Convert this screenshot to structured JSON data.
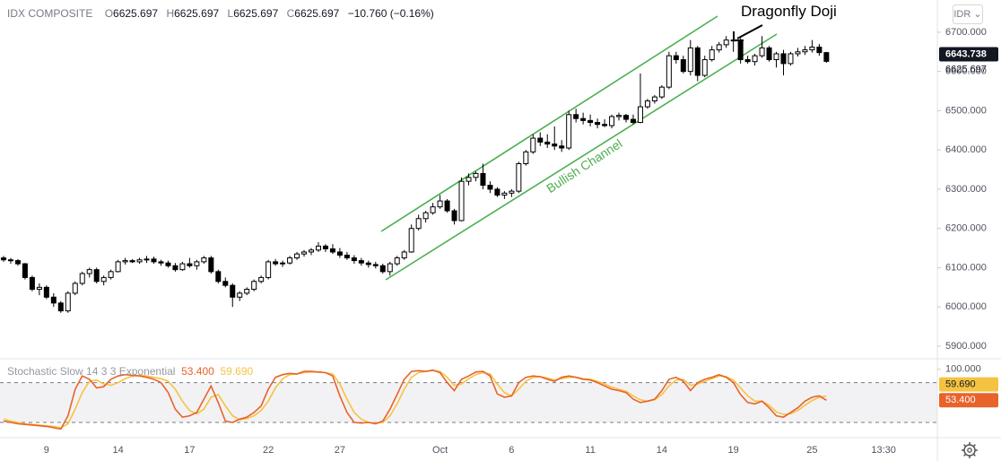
{
  "chart_data": {
    "type": "candlestick",
    "title": "IDX COMPOSITE",
    "ohlc": [
      {
        "label": "O",
        "value": 6625.697
      },
      {
        "label": "H",
        "value": 6625.697
      },
      {
        "label": "L",
        "value": 6625.697
      },
      {
        "label": "C",
        "value": 6625.697
      }
    ],
    "change": "−10.760 (−0.16%)",
    "currency": "IDR",
    "up_color": "#ffffff",
    "down_color": "#000000",
    "candles": [
      [
        6125,
        6130,
        6115,
        6120
      ],
      [
        6120,
        6125,
        6110,
        6118
      ],
      [
        6118,
        6122,
        6105,
        6110
      ],
      [
        6110,
        6112,
        6070,
        6075
      ],
      [
        6075,
        6080,
        6040,
        6045
      ],
      [
        6045,
        6060,
        6030,
        6050
      ],
      [
        6050,
        6055,
        6020,
        6025
      ],
      [
        6025,
        6035,
        6000,
        6010
      ],
      [
        6010,
        6015,
        5985,
        5990
      ],
      [
        5990,
        6040,
        5985,
        6035
      ],
      [
        6035,
        6065,
        6030,
        6060
      ],
      [
        6060,
        6090,
        6055,
        6085
      ],
      [
        6085,
        6100,
        6075,
        6095
      ],
      [
        6095,
        6100,
        6060,
        6065
      ],
      [
        6065,
        6080,
        6055,
        6075
      ],
      [
        6075,
        6095,
        6070,
        6090
      ],
      [
        6090,
        6120,
        6088,
        6115
      ],
      [
        6115,
        6125,
        6108,
        6118
      ],
      [
        6118,
        6122,
        6112,
        6115
      ],
      [
        6115,
        6125,
        6110,
        6120
      ],
      [
        6120,
        6130,
        6112,
        6122
      ],
      [
        6122,
        6128,
        6110,
        6115
      ],
      [
        6115,
        6120,
        6105,
        6112
      ],
      [
        6112,
        6118,
        6100,
        6105
      ],
      [
        6105,
        6112,
        6090,
        6095
      ],
      [
        6095,
        6115,
        6092,
        6110
      ],
      [
        6110,
        6125,
        6100,
        6105
      ],
      [
        6105,
        6120,
        6095,
        6115
      ],
      [
        6115,
        6130,
        6110,
        6125
      ],
      [
        6125,
        6130,
        6085,
        6090
      ],
      [
        6090,
        6095,
        6060,
        6065
      ],
      [
        6065,
        6075,
        6050,
        6055
      ],
      [
        6055,
        6060,
        6000,
        6025
      ],
      [
        6025,
        6040,
        6015,
        6035
      ],
      [
        6035,
        6050,
        6030,
        6045
      ],
      [
        6045,
        6070,
        6040,
        6065
      ],
      [
        6065,
        6080,
        6060,
        6075
      ],
      [
        6075,
        6120,
        6070,
        6115
      ],
      [
        6115,
        6122,
        6105,
        6110
      ],
      [
        6110,
        6118,
        6102,
        6112
      ],
      [
        6112,
        6130,
        6108,
        6125
      ],
      [
        6125,
        6140,
        6120,
        6135
      ],
      [
        6135,
        6145,
        6128,
        6140
      ],
      [
        6140,
        6150,
        6132,
        6145
      ],
      [
        6145,
        6165,
        6140,
        6155
      ],
      [
        6155,
        6160,
        6140,
        6148
      ],
      [
        6148,
        6160,
        6135,
        6140
      ],
      [
        6140,
        6150,
        6125,
        6132
      ],
      [
        6132,
        6140,
        6120,
        6125
      ],
      [
        6125,
        6132,
        6110,
        6118
      ],
      [
        6118,
        6125,
        6105,
        6112
      ],
      [
        6112,
        6118,
        6100,
        6108
      ],
      [
        6108,
        6115,
        6098,
        6105
      ],
      [
        6105,
        6110,
        6085,
        6090
      ],
      [
        6090,
        6115,
        6080,
        6110
      ],
      [
        6110,
        6130,
        6105,
        6125
      ],
      [
        6125,
        6145,
        6120,
        6140
      ],
      [
        6140,
        6210,
        6138,
        6200
      ],
      [
        6200,
        6235,
        6195,
        6225
      ],
      [
        6225,
        6245,
        6215,
        6240
      ],
      [
        6240,
        6265,
        6235,
        6255
      ],
      [
        6255,
        6285,
        6250,
        6270
      ],
      [
        6270,
        6275,
        6240,
        6245
      ],
      [
        6245,
        6250,
        6210,
        6220
      ],
      [
        6220,
        6330,
        6218,
        6320
      ],
      [
        6320,
        6340,
        6310,
        6330
      ],
      [
        6330,
        6345,
        6320,
        6340
      ],
      [
        6340,
        6365,
        6300,
        6310
      ],
      [
        6310,
        6320,
        6290,
        6300
      ],
      [
        6300,
        6305,
        6280,
        6285
      ],
      [
        6285,
        6295,
        6275,
        6290
      ],
      [
        6290,
        6300,
        6280,
        6295
      ],
      [
        6295,
        6370,
        6290,
        6365
      ],
      [
        6365,
        6400,
        6360,
        6395
      ],
      [
        6395,
        6440,
        6390,
        6430
      ],
      [
        6430,
        6445,
        6410,
        6420
      ],
      [
        6420,
        6440,
        6405,
        6415
      ],
      [
        6415,
        6460,
        6400,
        6410
      ],
      [
        6410,
        6425,
        6395,
        6405
      ],
      [
        6405,
        6500,
        6400,
        6490
      ],
      [
        6490,
        6505,
        6470,
        6480
      ],
      [
        6480,
        6495,
        6465,
        6475
      ],
      [
        6475,
        6490,
        6460,
        6470
      ],
      [
        6470,
        6480,
        6455,
        6465
      ],
      [
        6465,
        6478,
        6458,
        6462
      ],
      [
        6462,
        6490,
        6455,
        6485
      ],
      [
        6485,
        6495,
        6475,
        6488
      ],
      [
        6488,
        6492,
        6470,
        6478
      ],
      [
        6478,
        6490,
        6465,
        6470
      ],
      [
        6470,
        6595,
        6468,
        6510
      ],
      [
        6510,
        6530,
        6505,
        6525
      ],
      [
        6525,
        6540,
        6518,
        6535
      ],
      [
        6535,
        6565,
        6530,
        6560
      ],
      [
        6560,
        6650,
        6555,
        6640
      ],
      [
        6640,
        6650,
        6620,
        6630
      ],
      [
        6630,
        6640,
        6595,
        6600
      ],
      [
        6600,
        6680,
        6590,
        6660
      ],
      [
        6660,
        6665,
        6575,
        6590
      ],
      [
        6590,
        6640,
        6585,
        6630
      ],
      [
        6630,
        6665,
        6625,
        6655
      ],
      [
        6655,
        6675,
        6648,
        6668
      ],
      [
        6668,
        6690,
        6660,
        6680
      ],
      [
        6680,
        6684,
        6650,
        6680
      ],
      [
        6680,
        6685,
        6620,
        6630
      ],
      [
        6630,
        6640,
        6620,
        6625
      ],
      [
        6625,
        6645,
        6615,
        6640
      ],
      [
        6640,
        6690,
        6635,
        6660
      ],
      [
        6660,
        6665,
        6625,
        6630
      ],
      [
        6630,
        6650,
        6610,
        6645
      ],
      [
        6645,
        6655,
        6590,
        6620
      ],
      [
        6620,
        6650,
        6615,
        6645
      ],
      [
        6645,
        6660,
        6638,
        6650
      ],
      [
        6650,
        6665,
        6642,
        6655
      ],
      [
        6655,
        6680,
        6648,
        6662
      ],
      [
        6662,
        6670,
        6640,
        6648
      ],
      [
        6648,
        6650,
        6622,
        6625.697
      ]
    ],
    "xlim": [
      -0.5,
      130.5
    ],
    "xticks": [
      {
        "value": 6,
        "label": "9"
      },
      {
        "value": 16,
        "label": "14"
      },
      {
        "value": 26,
        "label": "17"
      },
      {
        "value": 37,
        "label": "22"
      },
      {
        "value": 47,
        "label": "27"
      },
      {
        "value": 61,
        "label": "Oct"
      },
      {
        "value": 71,
        "label": "6"
      },
      {
        "value": 82,
        "label": "11"
      },
      {
        "value": 92,
        "label": "14"
      },
      {
        "value": 102,
        "label": "19"
      },
      {
        "value": 113,
        "label": "25"
      },
      {
        "value": 123,
        "label": "13:30"
      }
    ],
    "ylim": [
      5868,
      6782
    ],
    "yticks": [
      {
        "value": 5900,
        "label": "5900.000"
      },
      {
        "value": 6000,
        "label": "6000.000"
      },
      {
        "value": 6100,
        "label": "6100.000"
      },
      {
        "value": 6200,
        "label": "6200.000"
      },
      {
        "value": 6300,
        "label": "6300.000"
      },
      {
        "value": 6400,
        "label": "6400.000"
      },
      {
        "value": 6500,
        "label": "6500.000"
      },
      {
        "value": 6600,
        "label": "6600.000"
      },
      {
        "value": 6700,
        "label": "6700.000"
      }
    ],
    "price_labels": [
      6643.738,
      6625.697
    ],
    "channel_label": "Bullish Channel",
    "channel_color": "#4caf50",
    "pattern_label": "Dragonfly Doji",
    "indicator": {
      "type": "line",
      "title": "Stochastic Slow 14 3 3 Exponential",
      "ylim": [
        -3,
        116
      ],
      "yticks": [
        {
          "value": 100,
          "label": "100.000"
        }
      ],
      "bands": [
        20,
        80
      ],
      "series": [
        {
          "color": "#e8632b",
          "last_label": "53.400",
          "values": [
            22,
            20,
            18,
            17,
            16,
            15,
            14,
            12,
            10,
            30,
            70,
            90,
            85,
            72,
            74,
            85,
            90,
            92,
            91,
            90,
            88,
            85,
            80,
            65,
            40,
            28,
            30,
            35,
            55,
            75,
            50,
            22,
            20,
            25,
            28,
            35,
            45,
            70,
            88,
            92,
            94,
            93,
            97,
            97,
            96,
            95,
            90,
            60,
            35,
            20,
            19,
            20,
            18,
            22,
            40,
            62,
            85,
            97,
            98,
            97,
            99,
            95,
            80,
            68,
            85,
            90,
            96,
            97,
            90,
            63,
            58,
            60,
            80,
            88,
            90,
            89,
            85,
            82,
            88,
            90,
            88,
            85,
            84,
            80,
            75,
            70,
            68,
            65,
            55,
            50,
            52,
            55,
            68,
            85,
            88,
            82,
            68,
            80,
            85,
            88,
            92,
            88,
            80,
            62,
            50,
            48,
            52,
            42,
            30,
            28,
            35,
            42,
            52,
            58,
            60,
            53.4
          ]
        },
        {
          "color": "#f5c342",
          "last_label": "59.690",
          "values": [
            25,
            22,
            20,
            18,
            17,
            16,
            15,
            14,
            12,
            18,
            40,
            65,
            82,
            84,
            78,
            76,
            80,
            86,
            90,
            91,
            90,
            88,
            86,
            82,
            70,
            52,
            38,
            33,
            40,
            58,
            62,
            45,
            30,
            24,
            26,
            30,
            38,
            52,
            72,
            86,
            92,
            93,
            95,
            96,
            96,
            95,
            93,
            78,
            55,
            35,
            25,
            20,
            19,
            20,
            30,
            48,
            70,
            88,
            95,
            97,
            98,
            97,
            88,
            76,
            78,
            86,
            92,
            95,
            93,
            78,
            65,
            60,
            70,
            82,
            88,
            89,
            87,
            84,
            86,
            88,
            88,
            86,
            85,
            82,
            78,
            73,
            70,
            67,
            60,
            54,
            52,
            54,
            62,
            75,
            84,
            85,
            76,
            78,
            82,
            86,
            90,
            89,
            84,
            72,
            60,
            52,
            52,
            46,
            36,
            32,
            33,
            38,
            46,
            53,
            58,
            59.69
          ]
        }
      ]
    }
  }
}
